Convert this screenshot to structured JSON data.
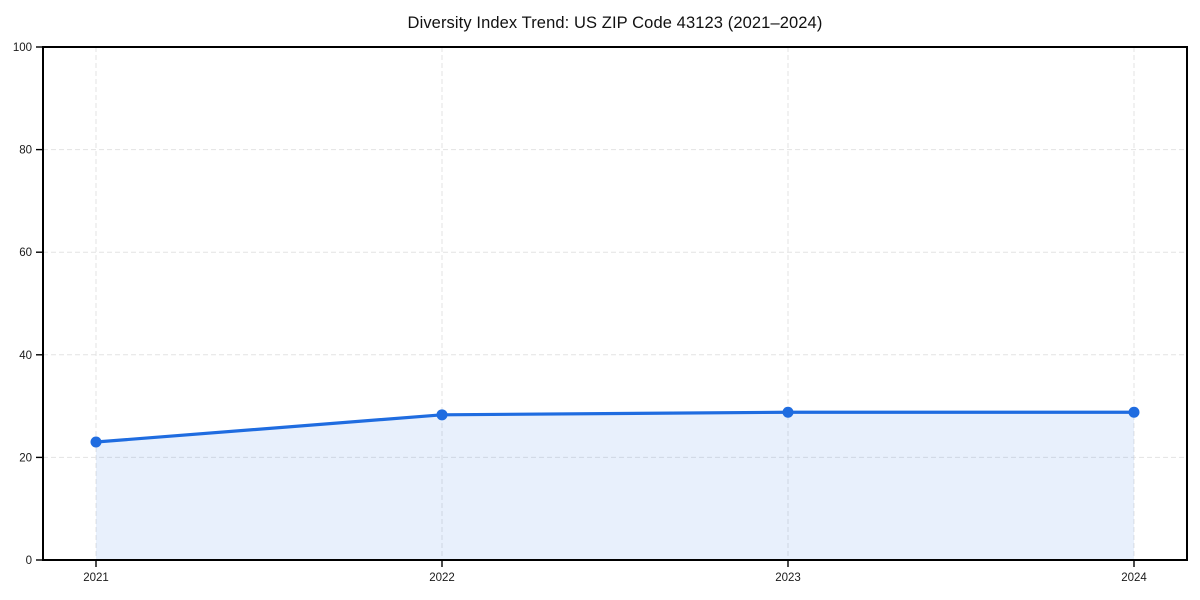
{
  "chart_data": {
    "type": "line",
    "title": "Diversity Index Trend: US ZIP Code 43123 (2021–2024)",
    "categories": [
      "2021",
      "2022",
      "2023",
      "2024"
    ],
    "series": [
      {
        "name": "Diversity Index",
        "values": [
          23,
          28.3,
          28.8,
          28.8
        ]
      }
    ],
    "xlabel": "",
    "ylabel": "",
    "ylim": [
      0,
      100
    ],
    "yticks": [
      0,
      20,
      40,
      60,
      80,
      100
    ],
    "grid": true,
    "grid_style": "dashed",
    "legend_position": "none",
    "colors": {
      "line": "#1f6ce0",
      "marker": "#1f6ce0",
      "area": "#1f6ce0",
      "area_opacity": 0.1,
      "grid": "#e3e3e3",
      "spine": "#000000",
      "text": "#1a1a1a",
      "background": "#ffffff"
    }
  }
}
